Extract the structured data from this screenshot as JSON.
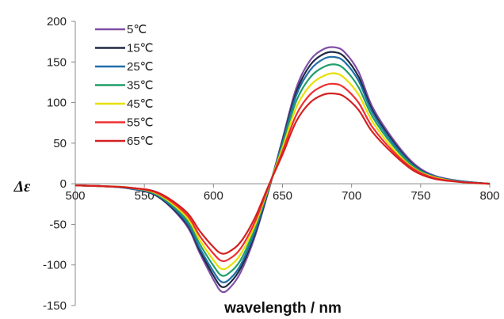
{
  "chart_data": {
    "type": "line",
    "title": "",
    "xlabel": "wavelength / nm",
    "ylabel": "Δε",
    "xlim": [
      500,
      800
    ],
    "ylim": [
      -150,
      200
    ],
    "xticks": [
      500,
      550,
      600,
      650,
      700,
      750,
      800
    ],
    "yticks": [
      -150,
      -100,
      -50,
      0,
      50,
      100,
      150,
      200
    ],
    "xtick_labels": [
      "500",
      "550",
      "600",
      "650",
      "700",
      "750",
      "800"
    ],
    "ytick_labels": [
      "-150",
      "-100",
      "-50",
      "0",
      "50",
      "100",
      "150",
      "200"
    ],
    "grid": false,
    "legend_position": "top-left",
    "x": [
      500,
      520,
      540,
      560,
      580,
      590,
      600,
      606,
      612,
      620,
      630,
      640,
      650,
      660,
      670,
      680,
      688,
      695,
      705,
      715,
      730,
      745,
      760,
      780,
      800
    ],
    "series": [
      {
        "name": "5℃",
        "color": "#7f4fa5",
        "values": [
          -2,
          -3,
          -6,
          -16,
          -50,
          -85,
          -118,
          -133,
          -128,
          -108,
          -65,
          -8,
          55,
          118,
          152,
          166,
          168,
          162,
          138,
          95,
          55,
          25,
          10,
          3,
          0
        ]
      },
      {
        "name": "15℃",
        "color": "#1f2a44",
        "values": [
          -2,
          -3,
          -6,
          -16,
          -48,
          -82,
          -113,
          -127,
          -122,
          -103,
          -62,
          -7,
          53,
          113,
          146,
          160,
          162,
          156,
          132,
          91,
          52,
          23,
          9,
          3,
          0
        ]
      },
      {
        "name": "25℃",
        "color": "#1f6fa8",
        "values": [
          -2,
          -3,
          -6,
          -15,
          -46,
          -79,
          -108,
          -121,
          -117,
          -99,
          -59,
          -6,
          51,
          109,
          140,
          154,
          156,
          150,
          127,
          88,
          50,
          22,
          9,
          3,
          0
        ]
      },
      {
        "name": "35℃",
        "color": "#1f9e6a",
        "values": [
          -2,
          -3,
          -5,
          -14,
          -43,
          -74,
          -101,
          -113,
          -109,
          -93,
          -55,
          -5,
          48,
          102,
          131,
          144,
          147,
          141,
          119,
          83,
          47,
          21,
          8,
          2,
          0
        ]
      },
      {
        "name": "45℃",
        "color": "#e8e000",
        "values": [
          -2,
          -3,
          -5,
          -13,
          -40,
          -69,
          -94,
          -105,
          -101,
          -86,
          -51,
          -4,
          44,
          94,
          121,
          133,
          136,
          130,
          110,
          77,
          43,
          19,
          8,
          2,
          0
        ]
      },
      {
        "name": "55℃",
        "color": "#ee3030",
        "values": [
          -2,
          -3,
          -5,
          -12,
          -37,
          -64,
          -86,
          -95,
          -92,
          -79,
          -47,
          -3,
          40,
          85,
          110,
          121,
          123,
          118,
          100,
          70,
          40,
          18,
          7,
          2,
          0
        ]
      },
      {
        "name": "65℃",
        "color": "#d42020",
        "values": [
          -2,
          -3,
          -5,
          -11,
          -34,
          -58,
          -78,
          -86,
          -83,
          -71,
          -42,
          -2,
          36,
          77,
          100,
          110,
          111,
          107,
          91,
          64,
          37,
          16,
          6,
          2,
          0
        ]
      }
    ]
  }
}
